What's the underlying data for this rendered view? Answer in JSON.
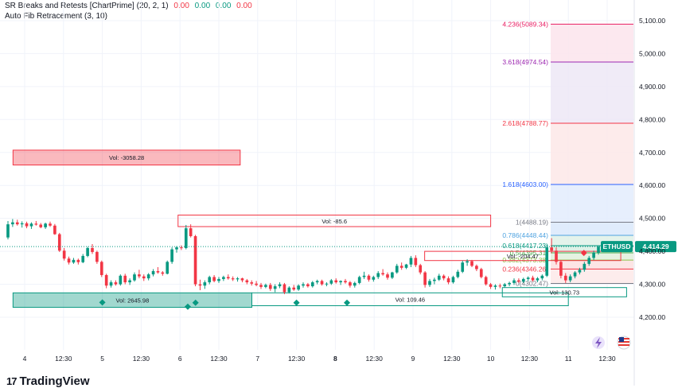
{
  "indicators": [
    {
      "name": "SR Breaks and Retests [ChartPrime] (20, 2, 1)",
      "values": [
        "0.00",
        "0.00",
        "0.00",
        "0.00"
      ],
      "colors": [
        "#f23645",
        "#089981",
        "#089981",
        "#f23645"
      ]
    },
    {
      "name": "Auto Fib Retracement (3, 10)"
    }
  ],
  "brand": {
    "name": "TradingView",
    "mark": "17"
  },
  "price_label": {
    "symbol": "ETHUSD",
    "price": "4,414.29",
    "value": 4414.29
  },
  "colors": {
    "up": "#089981",
    "down": "#f23645",
    "wick": "#131722"
  },
  "chart_data": {
    "type": "candlestick",
    "symbol": "ETHUSD",
    "ylim": [
      4150,
      5150
    ],
    "y_ticks": [
      {
        "value": 4200,
        "label": "4,200.00"
      },
      {
        "value": 4300,
        "label": "4,300.00"
      },
      {
        "value": 4400,
        "label": "4,400.00"
      },
      {
        "value": 4500,
        "label": "4,500.00"
      },
      {
        "value": 4600,
        "label": "4,600.00"
      },
      {
        "value": 4700,
        "label": "4,700.00"
      },
      {
        "value": 4800,
        "label": "4,800.00"
      },
      {
        "value": 4900,
        "label": "4,900.00"
      },
      {
        "value": 5000,
        "label": "5,000.00"
      },
      {
        "value": 5100,
        "label": "5,100.00"
      }
    ],
    "x_ticks": [
      {
        "t": 0,
        "label": "4",
        "bold": false
      },
      {
        "t": 1,
        "label": "12:30",
        "bold": false
      },
      {
        "t": 2,
        "label": "5",
        "bold": false
      },
      {
        "t": 3,
        "label": "12:30",
        "bold": false
      },
      {
        "t": 4,
        "label": "6",
        "bold": false
      },
      {
        "t": 5,
        "label": "12:30",
        "bold": false
      },
      {
        "t": 6,
        "label": "7",
        "bold": false
      },
      {
        "t": 7,
        "label": "12:30",
        "bold": false
      },
      {
        "t": 8,
        "label": "8",
        "bold": true
      },
      {
        "t": 9,
        "label": "12:30",
        "bold": false
      },
      {
        "t": 10,
        "label": "9",
        "bold": false
      },
      {
        "t": 11,
        "label": "12:30",
        "bold": false
      },
      {
        "t": 12,
        "label": "10",
        "bold": false
      },
      {
        "t": 13,
        "label": "12:30",
        "bold": false
      },
      {
        "t": 14,
        "label": "11",
        "bold": false
      },
      {
        "t": 15,
        "label": "12:30",
        "bold": false
      }
    ],
    "fib_levels": [
      {
        "label": "4.236(5089.34)",
        "value": 5089.34,
        "color": "#e91e63",
        "fill": "#fce4ec"
      },
      {
        "label": "3.618(4974.54)",
        "value": 4974.54,
        "color": "#9c27b0",
        "fill": "#ede7f6"
      },
      {
        "label": "2.618(4788.77)",
        "value": 4788.77,
        "color": "#f23645",
        "fill": "#fde8e8"
      },
      {
        "label": "1.618(4603.00)",
        "value": 4603.0,
        "color": "#2962ff",
        "fill": "#e3ecfd"
      },
      {
        "label": "1(4488.19)",
        "value": 4488.19,
        "color": "#787b86",
        "fill": "#dbe9fb"
      },
      {
        "label": "0.786(4448.44)",
        "value": 4448.44,
        "color": "#4fa3e0",
        "fill": "#dff1e8"
      },
      {
        "label": "0.618(4417.23)",
        "value": 4417.23,
        "color": "#089981",
        "fill": "#d8efe3"
      },
      {
        "label": "0.5(4395.31)",
        "value": 4395.31,
        "color": "#4caf50",
        "fill": "#e0f0dc"
      },
      {
        "label": "0.382(4373.38)",
        "value": 4373.38,
        "color": "#8bc34a",
        "fill": "#fbe0e0"
      },
      {
        "label": "0.236(4346.26)",
        "value": 4346.26,
        "color": "#f23645",
        "fill": "#fde9e9"
      },
      {
        "label": "0(4302.47)",
        "value": 4302.47,
        "color": "#787b86",
        "fill": null
      }
    ],
    "zones": [
      {
        "kind": "resistance",
        "t0": -0.3,
        "t1": 5.55,
        "top": 4707,
        "bottom": 4662,
        "label": "Vol: -3058.28",
        "filled": true
      },
      {
        "kind": "resistance",
        "t0": 3.95,
        "t1": 12.0,
        "top": 4510,
        "bottom": 4475,
        "label": "Vol: -85.6",
        "filled": false
      },
      {
        "kind": "resistance",
        "t0": 10.3,
        "t1": 15.35,
        "top": 4400,
        "bottom": 4372,
        "label": "Vol: -204.47",
        "filled": false
      },
      {
        "kind": "support",
        "t0": -0.3,
        "t1": 5.85,
        "top": 4274,
        "bottom": 4230,
        "label": "Vol: 2645.98",
        "filled": true
      },
      {
        "kind": "support",
        "t0": 5.85,
        "t1": 14.0,
        "top": 4274,
        "bottom": 4235,
        "label": "Vol: 109.46",
        "filled": false
      },
      {
        "kind": "support",
        "t0": 12.3,
        "t1": 15.5,
        "top": 4290,
        "bottom": 4262,
        "label": "Vol: 130.73",
        "filled": false
      }
    ],
    "breakout_markers": [
      {
        "t": 2.0,
        "value": 4245
      },
      {
        "t": 4.2,
        "value": 4232
      },
      {
        "t": 4.4,
        "value": 4244
      },
      {
        "t": 7.0,
        "value": 4244
      },
      {
        "t": 8.3,
        "value": 4244
      }
    ],
    "retest_markers": [
      {
        "t": 14.4,
        "value": 4395
      }
    ],
    "candles": [
      [
        4442,
        4492,
        4436,
        4482
      ],
      [
        4482,
        4498,
        4474,
        4488
      ],
      [
        4488,
        4496,
        4478,
        4482
      ],
      [
        4482,
        4491,
        4472,
        4485
      ],
      [
        4485,
        4490,
        4470,
        4476
      ],
      [
        4476,
        4488,
        4468,
        4484
      ],
      [
        4484,
        4492,
        4478,
        4481
      ],
      [
        4481,
        4486,
        4470,
        4473
      ],
      [
        4473,
        4487,
        4468,
        4484
      ],
      [
        4484,
        4490,
        4474,
        4478
      ],
      [
        4478,
        4483,
        4450,
        4452
      ],
      [
        4452,
        4456,
        4398,
        4402
      ],
      [
        4402,
        4410,
        4372,
        4378
      ],
      [
        4378,
        4384,
        4360,
        4366
      ],
      [
        4366,
        4380,
        4362,
        4374
      ],
      [
        4374,
        4378,
        4360,
        4367
      ],
      [
        4367,
        4392,
        4364,
        4386
      ],
      [
        4386,
        4414,
        4382,
        4410
      ],
      [
        4410,
        4422,
        4392,
        4398
      ],
      [
        4398,
        4402,
        4362,
        4368
      ],
      [
        4368,
        4372,
        4322,
        4328
      ],
      [
        4328,
        4332,
        4288,
        4296
      ],
      [
        4296,
        4312,
        4290,
        4306
      ],
      [
        4306,
        4312,
        4296,
        4300
      ],
      [
        4300,
        4330,
        4296,
        4326
      ],
      [
        4326,
        4332,
        4300,
        4306
      ],
      [
        4306,
        4318,
        4298,
        4312
      ],
      [
        4312,
        4336,
        4308,
        4330
      ],
      [
        4330,
        4344,
        4318,
        4324
      ],
      [
        4324,
        4330,
        4310,
        4318
      ],
      [
        4318,
        4334,
        4312,
        4330
      ],
      [
        4330,
        4346,
        4324,
        4340
      ],
      [
        4340,
        4352,
        4332,
        4336
      ],
      [
        4336,
        4340,
        4326,
        4332
      ],
      [
        4332,
        4372,
        4330,
        4368
      ],
      [
        4368,
        4412,
        4362,
        4406
      ],
      [
        4406,
        4416,
        4396,
        4412
      ],
      [
        4412,
        4418,
        4404,
        4410
      ],
      [
        4410,
        4480,
        4406,
        4470
      ],
      [
        4470,
        4482,
        4442,
        4446
      ],
      [
        4446,
        4450,
        4294,
        4300
      ],
      [
        4300,
        4314,
        4282,
        4296
      ],
      [
        4296,
        4312,
        4286,
        4306
      ],
      [
        4306,
        4326,
        4300,
        4322
      ],
      [
        4322,
        4328,
        4306,
        4310
      ],
      [
        4310,
        4322,
        4304,
        4316
      ],
      [
        4316,
        4326,
        4310,
        4322
      ],
      [
        4322,
        4330,
        4314,
        4318
      ],
      [
        4318,
        4324,
        4310,
        4315
      ],
      [
        4315,
        4322,
        4308,
        4318
      ],
      [
        4318,
        4320,
        4306,
        4312
      ],
      [
        4312,
        4316,
        4300,
        4306
      ],
      [
        4306,
        4312,
        4296,
        4302
      ],
      [
        4302,
        4310,
        4294,
        4298
      ],
      [
        4298,
        4304,
        4286,
        4292
      ],
      [
        4292,
        4302,
        4288,
        4298
      ],
      [
        4298,
        4304,
        4280,
        4286
      ],
      [
        4286,
        4300,
        4276,
        4294
      ],
      [
        4294,
        4306,
        4288,
        4300
      ],
      [
        4300,
        4304,
        4270,
        4276
      ],
      [
        4276,
        4294,
        4272,
        4290
      ],
      [
        4290,
        4298,
        4280,
        4284
      ],
      [
        4284,
        4300,
        4280,
        4296
      ],
      [
        4296,
        4306,
        4290,
        4300
      ],
      [
        4300,
        4304,
        4290,
        4294
      ],
      [
        4294,
        4310,
        4290,
        4306
      ],
      [
        4306,
        4314,
        4300,
        4310
      ],
      [
        4310,
        4314,
        4296,
        4300
      ],
      [
        4300,
        4306,
        4294,
        4302
      ],
      [
        4302,
        4316,
        4298,
        4312
      ],
      [
        4312,
        4318,
        4302,
        4306
      ],
      [
        4306,
        4312,
        4298,
        4310
      ],
      [
        4310,
        4316,
        4302,
        4306
      ],
      [
        4306,
        4310,
        4290,
        4296
      ],
      [
        4296,
        4308,
        4290,
        4304
      ],
      [
        4304,
        4326,
        4300,
        4322
      ],
      [
        4322,
        4338,
        4316,
        4326
      ],
      [
        4326,
        4330,
        4308,
        4314
      ],
      [
        4314,
        4326,
        4308,
        4322
      ],
      [
        4322,
        4340,
        4316,
        4334
      ],
      [
        4334,
        4346,
        4326,
        4330
      ],
      [
        4330,
        4336,
        4314,
        4320
      ],
      [
        4320,
        4338,
        4316,
        4336
      ],
      [
        4336,
        4362,
        4332,
        4356
      ],
      [
        4356,
        4366,
        4344,
        4350
      ],
      [
        4350,
        4362,
        4346,
        4360
      ],
      [
        4360,
        4386,
        4352,
        4380
      ],
      [
        4380,
        4388,
        4352,
        4358
      ],
      [
        4358,
        4362,
        4330,
        4336
      ],
      [
        4336,
        4340,
        4290,
        4298
      ],
      [
        4298,
        4316,
        4292,
        4310
      ],
      [
        4310,
        4320,
        4300,
        4314
      ],
      [
        4314,
        4332,
        4310,
        4326
      ],
      [
        4326,
        4330,
        4312,
        4318
      ],
      [
        4318,
        4324,
        4300,
        4306
      ],
      [
        4306,
        4326,
        4302,
        4322
      ],
      [
        4322,
        4344,
        4318,
        4338
      ],
      [
        4338,
        4372,
        4334,
        4366
      ],
      [
        4366,
        4376,
        4356,
        4370
      ],
      [
        4370,
        4374,
        4352,
        4356
      ],
      [
        4356,
        4360,
        4340,
        4346
      ],
      [
        4346,
        4350,
        4318,
        4322
      ],
      [
        4322,
        4326,
        4296,
        4300
      ],
      [
        4300,
        4304,
        4286,
        4292
      ],
      [
        4292,
        4300,
        4284,
        4296
      ],
      [
        4296,
        4302,
        4288,
        4294
      ],
      [
        4294,
        4304,
        4290,
        4300
      ],
      [
        4300,
        4308,
        4294,
        4304
      ],
      [
        4304,
        4318,
        4298,
        4312
      ],
      [
        4312,
        4318,
        4304,
        4308
      ],
      [
        4308,
        4320,
        4304,
        4316
      ],
      [
        4316,
        4324,
        4310,
        4320
      ],
      [
        4320,
        4326,
        4308,
        4312
      ],
      [
        4312,
        4322,
        4306,
        4318
      ],
      [
        4318,
        4330,
        4312,
        4326
      ],
      [
        4326,
        4420,
        4322,
        4412
      ],
      [
        4412,
        4440,
        4394,
        4402
      ],
      [
        4402,
        4412,
        4360,
        4368
      ],
      [
        4368,
        4374,
        4318,
        4326
      ],
      [
        4326,
        4334,
        4304,
        4312
      ],
      [
        4312,
        4330,
        4306,
        4324
      ],
      [
        4324,
        4340,
        4318,
        4336
      ],
      [
        4336,
        4350,
        4330,
        4344
      ],
      [
        4344,
        4368,
        4338,
        4362
      ],
      [
        4362,
        4386,
        4356,
        4380
      ],
      [
        4380,
        4402,
        4374,
        4396
      ],
      [
        4396,
        4418,
        4390,
        4414
      ]
    ]
  }
}
